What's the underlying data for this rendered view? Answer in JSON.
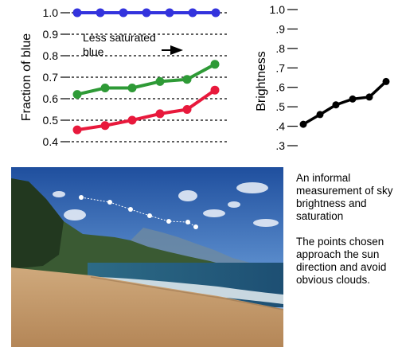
{
  "chart_data": [
    {
      "type": "line",
      "ylabel": "Fraction of blue",
      "yticks": [
        "1.0",
        "0.9",
        "0.8",
        "0.7",
        "0.6",
        "0.5",
        "0.4"
      ],
      "ylim": [
        0.4,
        1.0
      ],
      "grid": "dotted horizontal",
      "series": [
        {
          "color": "#3333dd",
          "values": [
            1.0,
            1.0,
            1.0,
            1.0,
            1.0,
            1.0,
            1.0
          ]
        },
        {
          "color": "#2e9a36",
          "values": [
            0.62,
            0.65,
            0.65,
            0.68,
            0.69,
            0.76
          ]
        },
        {
          "color": "#e8193c",
          "values": [
            0.455,
            0.475,
            0.5,
            0.53,
            0.55,
            0.64
          ]
        }
      ],
      "annotation": {
        "line1": "Less saturated",
        "line2": "blue"
      }
    },
    {
      "type": "line",
      "ylabel": "Brightness",
      "yticks": [
        ".3",
        ".4",
        ".5",
        ".6",
        ".7",
        ".8",
        ".9",
        "1.0"
      ],
      "ylim": [
        0.3,
        1.0
      ],
      "series": [
        {
          "color": "#000000",
          "values": [
            0.41,
            0.46,
            0.51,
            0.54,
            0.55,
            0.63
          ]
        }
      ]
    }
  ],
  "photo": {
    "sample_points": 7
  },
  "captions": {
    "first": "An informal measurement of sky brightness and saturation",
    "second": "The points chosen approach the sun direction and avoid obvious clouds."
  }
}
